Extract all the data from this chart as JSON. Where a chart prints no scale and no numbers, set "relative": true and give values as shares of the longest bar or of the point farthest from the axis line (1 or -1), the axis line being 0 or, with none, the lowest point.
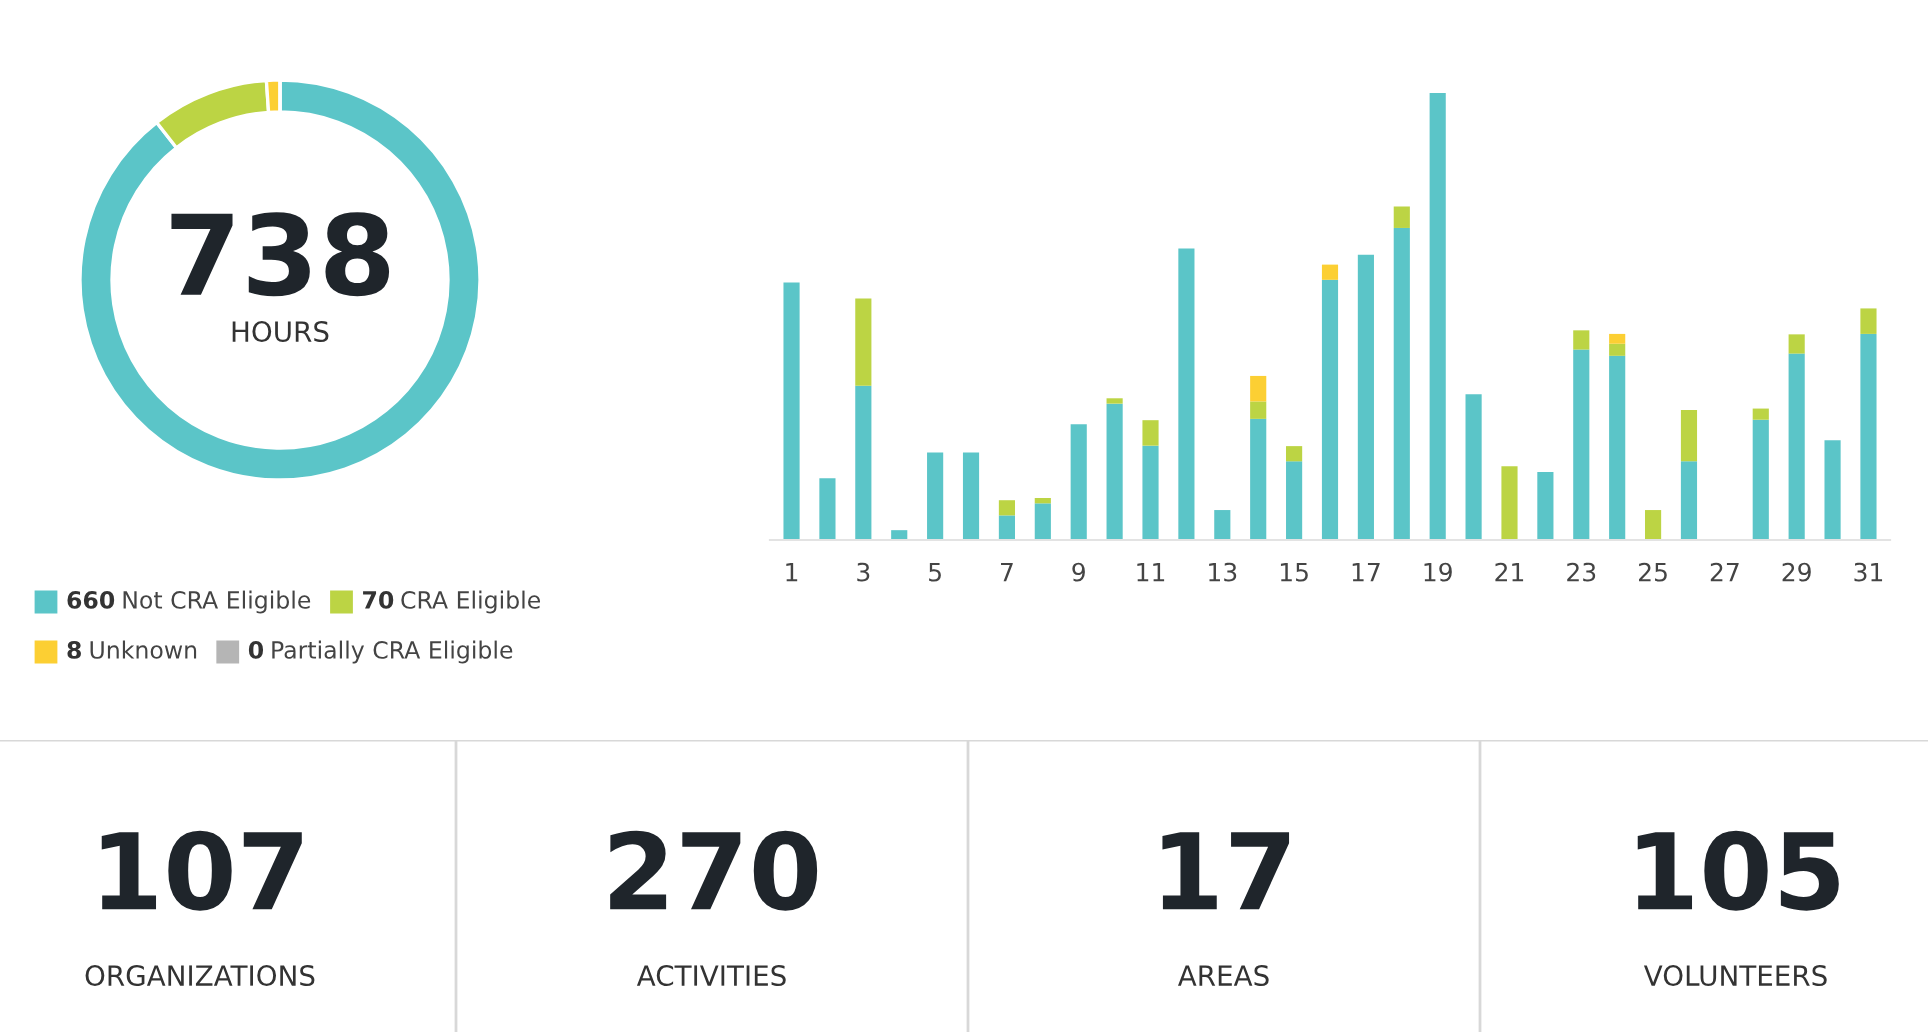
{
  "chart_data": [
    {
      "type": "donut",
      "categories": [
        "Not CRA Eligible",
        "CRA Eligible",
        "Unknown",
        "Partially CRA Eligible"
      ],
      "values": [
        660,
        70,
        8,
        0
      ],
      "colors": [
        "#5bc5c8",
        "#bcd444",
        "#fccf33",
        "#b5b5b5"
      ],
      "value_labels": [
        "660",
        "70",
        "8",
        "0"
      ],
      "legend": "bottom",
      "annotations": [
        "738",
        "HOURS"
      ]
    },
    {
      "type": "bar",
      "stacked": true,
      "relative": true,
      "legend": false,
      "grid": false,
      "categories": [
        "1",
        null,
        "3",
        null,
        "5",
        null,
        "7",
        null,
        "9",
        null,
        "11",
        null,
        "13",
        null,
        "15",
        null,
        "17",
        null,
        "19",
        null,
        "21",
        null,
        "23",
        null,
        "25",
        null,
        "27",
        null,
        "29",
        null,
        "31"
      ],
      "series": [
        {
          "color": "#5bc5c8",
          "values": [
            0.576,
            0.138,
            0.345,
            0.022,
            0.196,
            0.196,
            0.055,
            0.082,
            0.259,
            0.305,
            0.211,
            0.652,
            0.067,
            0.271,
            0.176,
            0.582,
            0.638,
            0.698,
            1,
            0.326,
            0,
            0.152,
            0.426,
            0.412,
            0,
            0.176,
            0,
            0.269,
            0.417,
            0.223,
            0.461
          ]
        },
        {
          "color": "#bcd444",
          "values": [
            0,
            0,
            0.195,
            0,
            0,
            0,
            0.034,
            0.012,
            0,
            0.012,
            0.057,
            0,
            0,
            0.039,
            0.034,
            0,
            0,
            0.048,
            0,
            0,
            0.165,
            0,
            0.043,
            0.027,
            0.067,
            0.115,
            0,
            0.025,
            0.043,
            0,
            0.057
          ]
        },
        {
          "color": "#fccf33",
          "values": [
            0,
            0,
            0,
            0,
            0,
            0,
            0,
            0,
            0,
            0,
            0,
            0,
            0,
            0.057,
            0,
            0.034,
            0,
            0,
            0,
            0,
            0,
            0,
            0,
            0.022,
            0,
            0,
            0,
            0,
            0,
            0,
            0
          ]
        }
      ]
    },
    {
      "type": "other",
      "annotations": [
        "107",
        "ORGANIZATIONS",
        "270",
        "ACTIVITIES",
        "17",
        "AREAS",
        "105",
        "VOLUNTEERS"
      ]
    }
  ]
}
